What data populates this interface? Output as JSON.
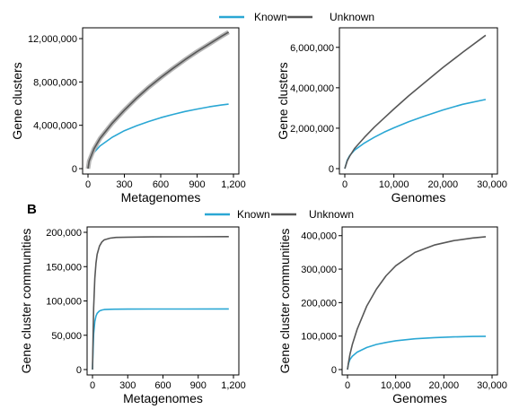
{
  "colors": {
    "known": "#2aa7d4",
    "unknown": "#575757",
    "axis": "#000000"
  },
  "legend": [
    "Known",
    "Unknown"
  ],
  "panel_labels": [
    "",
    "B"
  ],
  "chart_data": [
    {
      "type": "line",
      "xlabel": "Metagenomes",
      "ylabel": "Gene clusters",
      "xlim": [
        0,
        1200
      ],
      "ylim": [
        0,
        12500000
      ],
      "xticks": [
        0,
        300,
        600,
        900,
        1200
      ],
      "xtick_labels": [
        "0",
        "300",
        "600",
        "900",
        "1,200"
      ],
      "yticks": [
        0,
        4000000,
        8000000,
        12000000
      ],
      "ytick_labels": [
        "0",
        "4,000,000",
        "8,000,000",
        "12,000,000"
      ],
      "legend_position": "top",
      "series": [
        {
          "name": "Known",
          "x": [
            0,
            10,
            50,
            100,
            200,
            300,
            400,
            500,
            600,
            700,
            800,
            900,
            1000,
            1100,
            1160
          ],
          "y": [
            0,
            650000,
            1500000,
            2100000,
            2900000,
            3500000,
            3950000,
            4350000,
            4700000,
            5000000,
            5270000,
            5500000,
            5700000,
            5870000,
            5950000
          ]
        },
        {
          "name": "Unknown",
          "x": [
            0,
            10,
            50,
            100,
            200,
            300,
            400,
            500,
            600,
            700,
            800,
            900,
            1000,
            1100,
            1160
          ],
          "y": [
            0,
            700000,
            1850000,
            2800000,
            4200000,
            5400000,
            6500000,
            7500000,
            8400000,
            9250000,
            10050000,
            10800000,
            11500000,
            12200000,
            12600000
          ]
        }
      ]
    },
    {
      "type": "line",
      "xlabel": "Genomes",
      "ylabel": "Gene clusters",
      "xlim": [
        0,
        30000
      ],
      "ylim": [
        0,
        6700000
      ],
      "xticks": [
        0,
        10000,
        20000,
        30000
      ],
      "xtick_labels": [
        "0",
        "10,000",
        "20,000",
        "30,000"
      ],
      "yticks": [
        0,
        2000000,
        4000000,
        6000000
      ],
      "ytick_labels": [
        "0",
        "2,000,000",
        "4,000,000",
        "6,000,000"
      ],
      "legend_position": "top",
      "series": [
        {
          "name": "Known",
          "x": [
            0,
            500,
            1000,
            2000,
            4000,
            6000,
            8000,
            10000,
            13000,
            16000,
            20000,
            24000,
            28700
          ],
          "y": [
            0,
            420000,
            650000,
            920000,
            1270000,
            1550000,
            1800000,
            2020000,
            2320000,
            2580000,
            2900000,
            3180000,
            3420000
          ]
        },
        {
          "name": "Unknown",
          "x": [
            0,
            500,
            1000,
            2000,
            4000,
            6000,
            8000,
            10000,
            13000,
            16000,
            20000,
            24000,
            28700
          ],
          "y": [
            0,
            380000,
            620000,
            1000000,
            1550000,
            2050000,
            2500000,
            2950000,
            3600000,
            4200000,
            5000000,
            5750000,
            6600000
          ]
        }
      ]
    },
    {
      "type": "line",
      "xlabel": "Metagenomes",
      "ylabel": "Gene cluster communities",
      "xlim": [
        0,
        1200
      ],
      "ylim": [
        0,
        200000
      ],
      "xticks": [
        0,
        300,
        600,
        900,
        1200
      ],
      "xtick_labels": [
        "0",
        "300",
        "600",
        "900",
        "1,200"
      ],
      "yticks": [
        0,
        50000,
        100000,
        150000,
        200000
      ],
      "ytick_labels": [
        "0",
        "50,000",
        "100,000",
        "150,000",
        "200,000"
      ],
      "legend_position": "top",
      "series": [
        {
          "name": "Known",
          "x": [
            0,
            5,
            10,
            20,
            30,
            40,
            60,
            80,
            100,
            150,
            200,
            300,
            500,
            800,
            1160
          ],
          "y": [
            0,
            30000,
            52000,
            70000,
            78000,
            82000,
            85500,
            86800,
            87400,
            87800,
            88000,
            88100,
            88200,
            88300,
            88400
          ]
        },
        {
          "name": "Unknown",
          "x": [
            0,
            5,
            10,
            20,
            30,
            40,
            60,
            80,
            100,
            150,
            200,
            300,
            500,
            800,
            1160
          ],
          "y": [
            0,
            50000,
            90000,
            133000,
            155000,
            168000,
            180000,
            186000,
            189000,
            191500,
            192500,
            193000,
            193300,
            193500,
            193700
          ]
        }
      ]
    },
    {
      "type": "line",
      "xlabel": "Genomes",
      "ylabel": "Gene cluster communities",
      "xlim": [
        0,
        30000
      ],
      "ylim": [
        0,
        410000
      ],
      "xticks": [
        0,
        10000,
        20000,
        30000
      ],
      "xtick_labels": [
        "0",
        "10,000",
        "20,000",
        "30,000"
      ],
      "yticks": [
        0,
        100000,
        200000,
        300000,
        400000
      ],
      "ytick_labels": [
        "0",
        "100,000",
        "200,000",
        "300,000",
        "400,000"
      ],
      "legend_position": "top",
      "series": [
        {
          "name": "Known",
          "x": [
            0,
            200,
            500,
            1000,
            2000,
            4000,
            6000,
            8000,
            10000,
            14000,
            18000,
            22000,
            26000,
            28700
          ],
          "y": [
            0,
            18000,
            30000,
            40000,
            52000,
            66000,
            75000,
            81000,
            86000,
            92000,
            95500,
            97500,
            99000,
            99500
          ]
        },
        {
          "name": "Unknown",
          "x": [
            0,
            200,
            500,
            1000,
            2000,
            4000,
            6000,
            8000,
            10000,
            14000,
            18000,
            22000,
            26000,
            28700
          ],
          "y": [
            0,
            20000,
            45000,
            75000,
            120000,
            190000,
            240000,
            280000,
            310000,
            350000,
            372000,
            385000,
            393000,
            397000
          ]
        }
      ]
    }
  ]
}
